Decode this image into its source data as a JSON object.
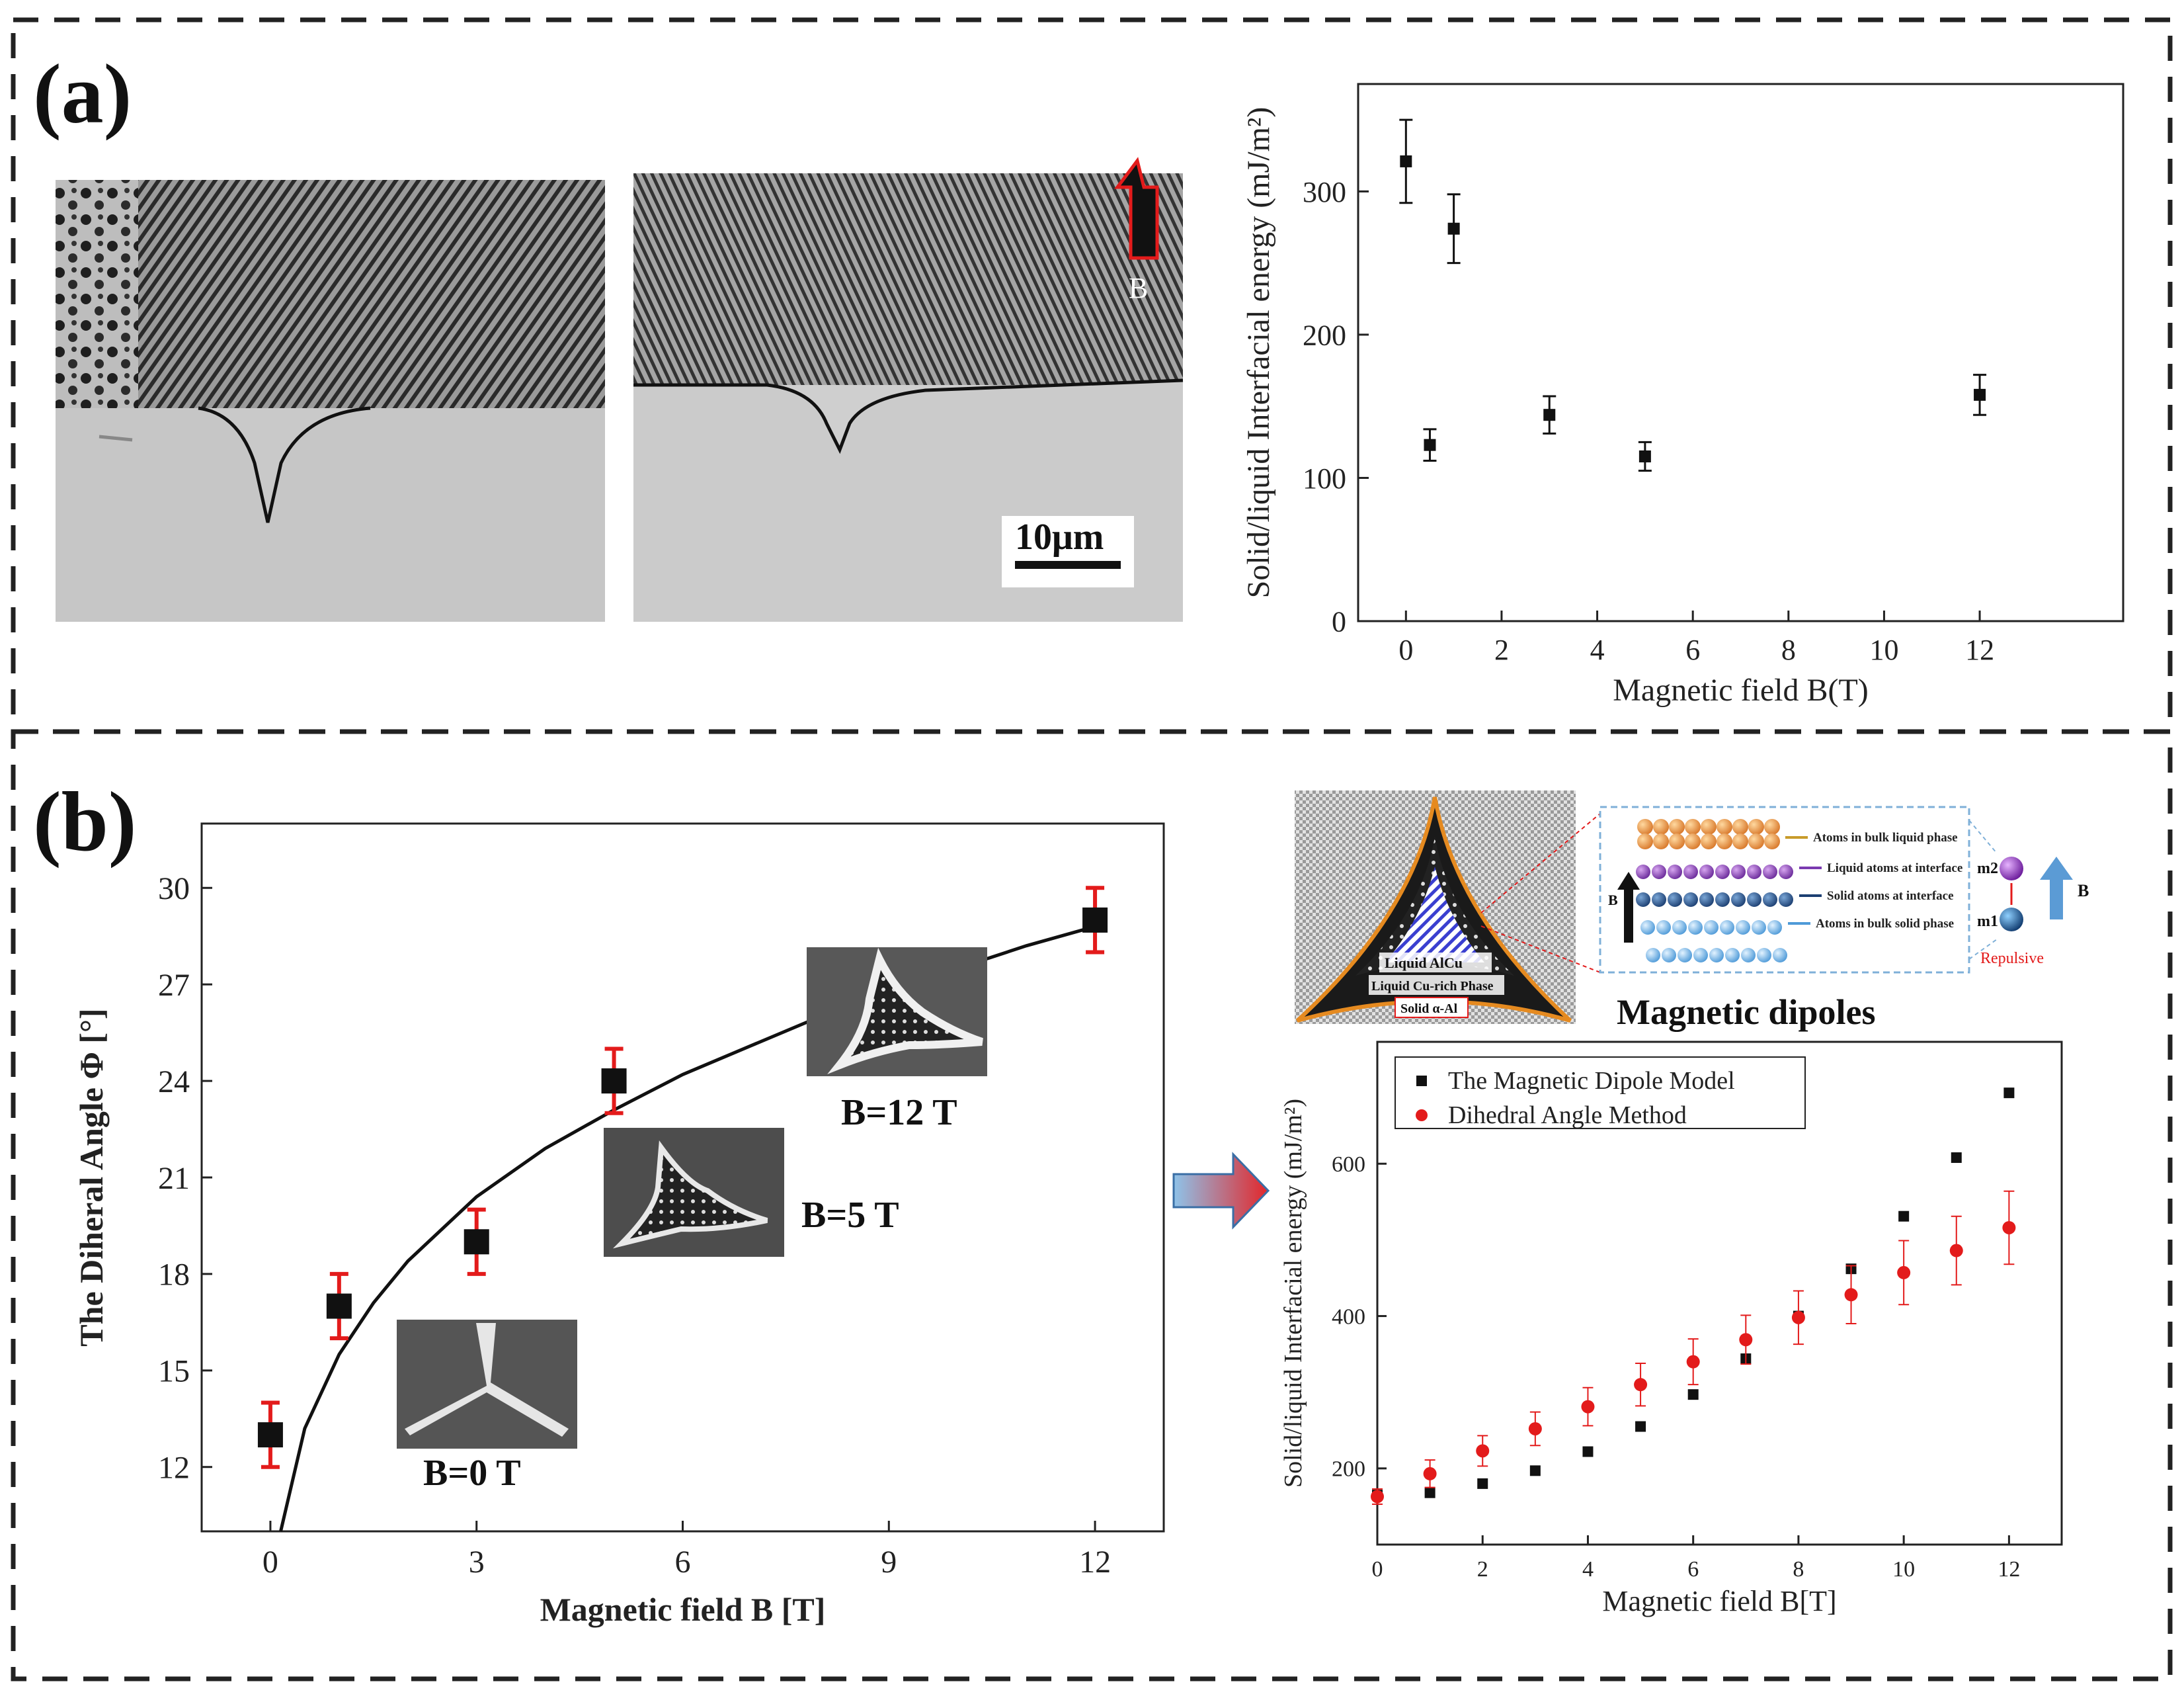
{
  "panels": {
    "a": {
      "label": "(a)",
      "scale_bar": "10μm",
      "field_arrow_label": "B"
    },
    "b": {
      "label": "(b)"
    }
  },
  "micrograph_labels": [
    "B=0 T",
    "B=5 T",
    "B=12 T"
  ],
  "schematic": {
    "region_labels": [
      "Liquid AlCu",
      "Liquid Cu-rich  Phase",
      "Solid α-Al"
    ],
    "atom_rows": [
      "Atoms in bulk liquid phase",
      "Liquid atoms at interface",
      "Solid atoms at interface",
      "Atoms in bulk solid phase"
    ],
    "field_label": "B",
    "dipole_upper": "m2",
    "dipole_lower": "m1",
    "dipole_field_label": "B",
    "repulsive_label": "Repulsive",
    "title": "Magnetic dipoles"
  },
  "colors": {
    "error_red": "#e31b1b",
    "marker_black": "#111111",
    "dipole_series": "#e31b1b",
    "arrow_fill_start": "#8ec3ea",
    "arrow_fill_end": "#e3262a",
    "field_arrow": "#e31b1b"
  },
  "chart_data": [
    {
      "id": "a-interfacial-energy",
      "type": "scatter",
      "xlabel": "Magnetic field B(T)",
      "ylabel": "Solid/liquid Interfacial energy (mJ/m²)",
      "xlim": [
        -1,
        15
      ],
      "ylim": [
        0,
        375
      ],
      "xticks": [
        0,
        2,
        4,
        6,
        8,
        10,
        12
      ],
      "yticks": [
        0,
        100,
        200,
        300
      ],
      "grid": false,
      "series": [
        {
          "x": [
            0,
            0.5,
            1,
            3,
            5,
            12
          ],
          "y": [
            321,
            123,
            274,
            144,
            115,
            158
          ],
          "err": [
            29,
            11,
            24,
            13,
            10,
            14
          ]
        }
      ]
    },
    {
      "id": "b-dihedral-angle",
      "type": "scatter",
      "xlabel": "Magnetic field B [T]",
      "ylabel": "The Diheral Angle Φ [°]",
      "xlim": [
        -1,
        13
      ],
      "ylim": [
        10,
        32
      ],
      "xticks": [
        0,
        3,
        6,
        9,
        12
      ],
      "yticks": [
        12,
        15,
        18,
        21,
        24,
        27,
        30
      ],
      "grid": false,
      "series": [
        {
          "x": [
            0,
            1,
            3,
            5,
            12
          ],
          "y": [
            13,
            17,
            19,
            24,
            29
          ],
          "err": [
            1,
            1,
            1,
            1,
            1
          ]
        }
      ],
      "fit": {
        "x": [
          0.15,
          0.5,
          1,
          1.5,
          2,
          3,
          4,
          5,
          6,
          7,
          8,
          9,
          10,
          11,
          12
        ],
        "y": [
          10,
          13.2,
          15.5,
          17.1,
          18.4,
          20.4,
          21.9,
          23.1,
          24.2,
          25.1,
          26.0,
          26.7,
          27.5,
          28.2,
          28.8
        ]
      }
    },
    {
      "id": "b-model-comparison",
      "type": "scatter",
      "xlabel": "Magnetic field B[T]",
      "ylabel": "Solid/liquid  Interfacial  energy  (mJ/m²)",
      "xlim": [
        0,
        13
      ],
      "ylim": [
        100,
        760
      ],
      "xticks": [
        0,
        2,
        4,
        6,
        8,
        10,
        12
      ],
      "yticks": [
        200,
        400,
        600
      ],
      "grid": false,
      "legend_position": "top-left",
      "series": [
        {
          "name": "The Magnetic Dipole Model",
          "x": [
            0,
            1,
            2,
            3,
            4,
            5,
            6,
            7,
            8,
            9,
            10,
            11,
            12
          ],
          "y": [
            165,
            168,
            180,
            197,
            222,
            255,
            297,
            344,
            400,
            462,
            531,
            608,
            693
          ]
        },
        {
          "name": "Dihedral Angle Method",
          "x": [
            0,
            1,
            2,
            3,
            4,
            5,
            6,
            7,
            8,
            9,
            10,
            11,
            12
          ],
          "y": [
            163,
            193,
            223,
            252,
            281,
            310,
            340,
            369,
            398,
            428,
            457,
            486,
            516
          ],
          "err": [
            10,
            18,
            20,
            22,
            25,
            28,
            30,
            32,
            35,
            38,
            42,
            45,
            48
          ]
        }
      ]
    }
  ]
}
